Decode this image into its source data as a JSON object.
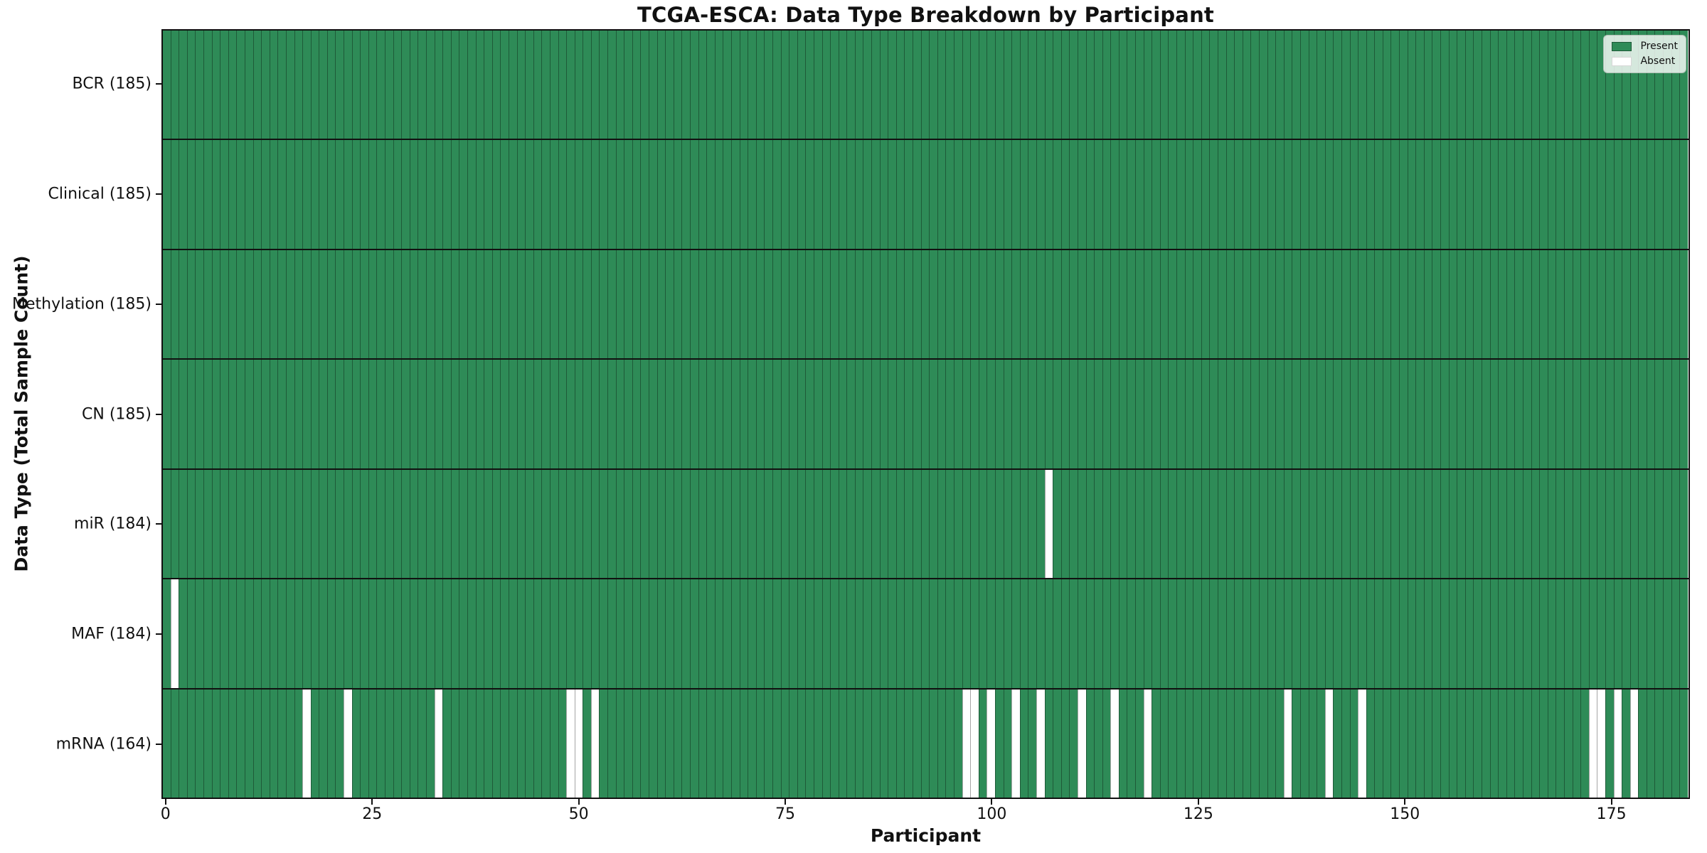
{
  "chart_data": {
    "type": "heatmap",
    "title": "TCGA-ESCA: Data Type Breakdown by Participant",
    "xlabel": "Participant",
    "ylabel": "Data Type (Total Sample Count)",
    "n_participants": 185,
    "x_ticks": [
      0,
      25,
      50,
      75,
      100,
      125,
      150,
      175
    ],
    "legend_position": "upper right",
    "grid": false,
    "legend": [
      {
        "label": "Present",
        "color": "#2e8b57"
      },
      {
        "label": "Absent",
        "color": "#ffffff"
      }
    ],
    "colors": {
      "present": "#2e8b57",
      "absent": "#ffffff",
      "cell_edge": "rgba(0,0,0,0.35)",
      "row_separator": "#111111"
    },
    "rows": [
      {
        "label": "BCR (185)",
        "data_type": "BCR",
        "total": 185,
        "absent_participants": []
      },
      {
        "label": "Clinical (185)",
        "data_type": "Clinical",
        "total": 185,
        "absent_participants": []
      },
      {
        "label": "Methylation (185)",
        "data_type": "Methylation",
        "total": 185,
        "absent_participants": []
      },
      {
        "label": "CN (185)",
        "data_type": "CN",
        "total": 185,
        "absent_participants": []
      },
      {
        "label": "miR (184)",
        "data_type": "miR",
        "total": 184,
        "absent_participants": [
          107
        ]
      },
      {
        "label": "MAF (184)",
        "data_type": "MAF",
        "total": 184,
        "absent_participants": [
          1
        ]
      },
      {
        "label": "mRNA (164)",
        "data_type": "mRNA",
        "total": 164,
        "absent_participants": [
          17,
          22,
          33,
          49,
          50,
          52,
          97,
          98,
          100,
          103,
          106,
          111,
          115,
          119,
          136,
          141,
          145,
          173,
          174,
          176,
          178
        ]
      }
    ]
  }
}
